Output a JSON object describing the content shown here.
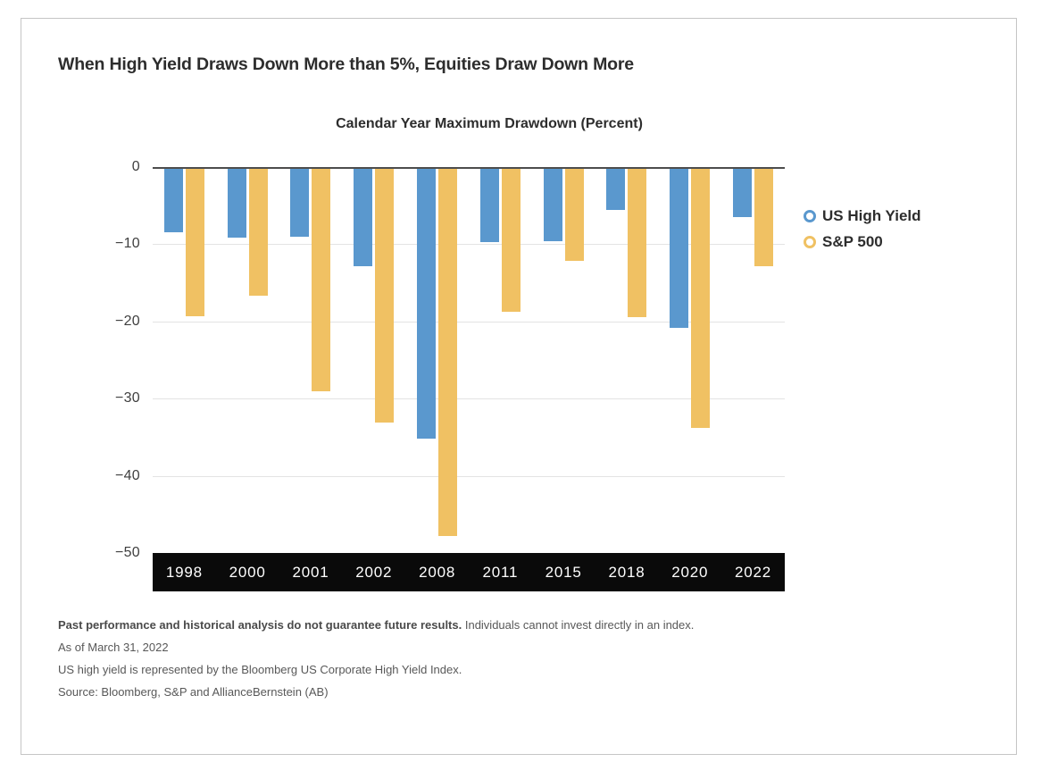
{
  "header": {
    "title": "When High Yield Draws Down More than 5%, Equities Draw Down More"
  },
  "chart_data": {
    "type": "bar",
    "title": "Calendar Year Maximum Drawdown (Percent)",
    "categories": [
      "1998",
      "2000",
      "2001",
      "2002",
      "2008",
      "2011",
      "2015",
      "2018",
      "2020",
      "2022"
    ],
    "series": [
      {
        "name": "US High Yield",
        "color": "#5A98CE",
        "values": [
          -8.5,
          -9.1,
          -9.0,
          -12.9,
          -35.2,
          -9.7,
          -9.6,
          -5.5,
          -20.8,
          -6.5
        ]
      },
      {
        "name": "S&P 500",
        "color": "#F0C163",
        "values": [
          -19.3,
          -16.7,
          -29.0,
          -33.1,
          -47.8,
          -18.8,
          -12.2,
          -19.4,
          -33.8,
          -12.8
        ]
      }
    ],
    "xlabel": "",
    "ylabel": "",
    "ylim": [
      -50,
      0
    ],
    "yticks": [
      0,
      -10,
      -20,
      -30,
      -40,
      -50
    ],
    "grid": true,
    "legend_position": "right",
    "colors": {
      "grid": "#e3e3e3",
      "zero_axis": "#4d4d4d",
      "xband_background": "#0a0a0a",
      "xband_text": "#ffffff"
    }
  },
  "footnotes": {
    "disclaimer_bold": "Past performance and historical analysis do not guarantee future results.",
    "disclaimer_rest": " Individuals cannot invest directly in an index.",
    "as_of": "As of March 31, 2022",
    "index_note": "US high yield is represented by the Bloomberg US Corporate High Yield Index.",
    "source": "Source: Bloomberg, S&P and AllianceBernstein (AB)"
  }
}
